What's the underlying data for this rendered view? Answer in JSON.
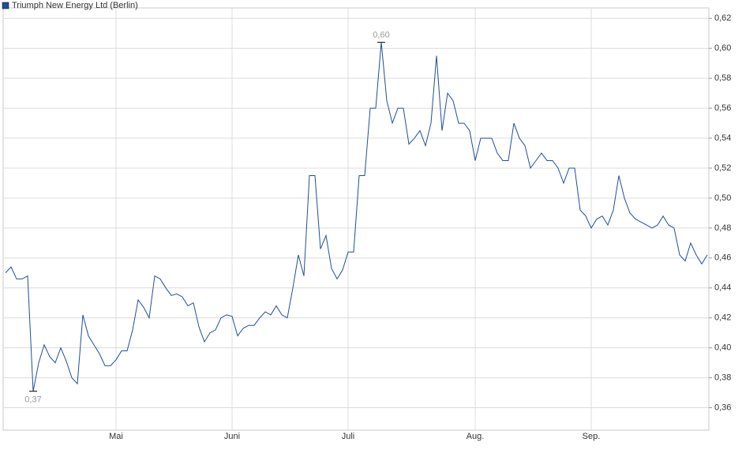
{
  "chart_data": {
    "type": "line",
    "categories": [
      null,
      null,
      null,
      null,
      null,
      null,
      null,
      null,
      null,
      null,
      null,
      null,
      null,
      null,
      null,
      null,
      null,
      null,
      null,
      null,
      "Mai",
      null,
      null,
      null,
      null,
      null,
      null,
      null,
      null,
      null,
      null,
      null,
      null,
      null,
      null,
      null,
      null,
      null,
      null,
      null,
      null,
      "Juni",
      null,
      null,
      null,
      null,
      null,
      null,
      null,
      null,
      null,
      null,
      null,
      null,
      null,
      null,
      null,
      null,
      null,
      null,
      null,
      null,
      "Juli",
      null,
      null,
      null,
      null,
      null,
      null,
      null,
      null,
      null,
      null,
      null,
      null,
      null,
      null,
      null,
      null,
      null,
      null,
      null,
      null,
      null,
      null,
      "Aug.",
      null,
      null,
      null,
      null,
      null,
      null,
      null,
      null,
      null,
      null,
      null,
      null,
      null,
      null,
      null,
      null,
      null,
      null,
      null,
      null,
      "Sep.",
      null,
      null,
      null,
      null,
      null,
      null,
      null,
      null,
      null,
      null,
      null,
      null,
      null,
      null,
      null,
      null,
      null,
      null,
      null,
      null,
      null
    ],
    "series": [
      {
        "name": "Triumph New Energy Ltd (Berlin)",
        "color": "#1f4e9c",
        "values": [
          0.45,
          0.454,
          0.446,
          0.446,
          0.448,
          0.371,
          0.39,
          0.402,
          0.394,
          0.39,
          0.4,
          0.391,
          0.38,
          0.376,
          0.422,
          0.408,
          0.402,
          0.396,
          0.388,
          0.388,
          0.392,
          0.398,
          0.398,
          0.412,
          0.432,
          0.427,
          0.42,
          0.448,
          0.446,
          0.44,
          0.435,
          0.436,
          0.434,
          0.428,
          0.43,
          0.414,
          0.404,
          0.41,
          0.412,
          0.42,
          0.422,
          0.421,
          0.408,
          0.413,
          0.415,
          0.415,
          0.42,
          0.424,
          0.422,
          0.428,
          0.422,
          0.42,
          0.44,
          0.462,
          0.448,
          0.515,
          0.515,
          0.466,
          0.475,
          0.453,
          0.446,
          0.452,
          0.464,
          0.464,
          0.515,
          0.515,
          0.56,
          0.56,
          0.604,
          0.565,
          0.55,
          0.56,
          0.56,
          0.536,
          0.54,
          0.545,
          0.535,
          0.55,
          0.595,
          0.545,
          0.57,
          0.565,
          0.55,
          0.55,
          0.545,
          0.525,
          0.54,
          0.54,
          0.54,
          0.53,
          0.525,
          0.525,
          0.55,
          0.54,
          0.535,
          0.52,
          0.525,
          0.53,
          0.525,
          0.525,
          0.52,
          0.51,
          0.52,
          0.52,
          0.492,
          0.488,
          0.48,
          0.486,
          0.488,
          0.482,
          0.492,
          0.515,
          0.5,
          0.49,
          0.486,
          0.484,
          0.482,
          0.48,
          0.482,
          0.488,
          0.482,
          0.48,
          0.462,
          0.458,
          0.47,
          0.462,
          0.456,
          0.462
        ],
        "value_labels": [
          null,
          null,
          null,
          null,
          null,
          "0,37",
          null,
          null,
          null,
          null,
          null,
          null,
          null,
          null,
          null,
          null,
          null,
          null,
          null,
          null,
          null,
          null,
          null,
          null,
          null,
          null,
          null,
          null,
          null,
          null,
          null,
          null,
          null,
          null,
          null,
          null,
          null,
          null,
          null,
          null,
          null,
          null,
          null,
          null,
          null,
          null,
          null,
          null,
          null,
          null,
          null,
          null,
          null,
          null,
          null,
          null,
          null,
          null,
          null,
          null,
          null,
          null,
          null,
          null,
          null,
          null,
          null,
          null,
          "0,60",
          null,
          null,
          null,
          null,
          null,
          null,
          null,
          null,
          null,
          null,
          null,
          null,
          null,
          null,
          null,
          null,
          null,
          null,
          null,
          null,
          null,
          null,
          null,
          null,
          null,
          null,
          null,
          null,
          null,
          null,
          null,
          null,
          null,
          null,
          null,
          null,
          null,
          null,
          null,
          null,
          null,
          null,
          null,
          null,
          null,
          null,
          null,
          null,
          null,
          null,
          null,
          null,
          null,
          null,
          null,
          null,
          null,
          null,
          null
        ]
      }
    ],
    "ylim": [
      0.345,
      0.627
    ],
    "yticks": [
      {
        "value": 0.36,
        "label": "0,36"
      },
      {
        "value": 0.38,
        "label": "0,38"
      },
      {
        "value": 0.4,
        "label": "0,40"
      },
      {
        "value": 0.42,
        "label": "0,42"
      },
      {
        "value": 0.44,
        "label": "0,44"
      },
      {
        "value": 0.46,
        "label": "0,46"
      },
      {
        "value": 0.48,
        "label": "0,48"
      },
      {
        "value": 0.5,
        "label": "0,50"
      },
      {
        "value": 0.52,
        "label": "0,52"
      },
      {
        "value": 0.54,
        "label": "0,54"
      },
      {
        "value": 0.56,
        "label": "0,56"
      },
      {
        "value": 0.58,
        "label": "0,58"
      },
      {
        "value": 0.6,
        "label": "0,60"
      },
      {
        "value": 0.62,
        "label": "0,62"
      }
    ],
    "grid": true
  }
}
